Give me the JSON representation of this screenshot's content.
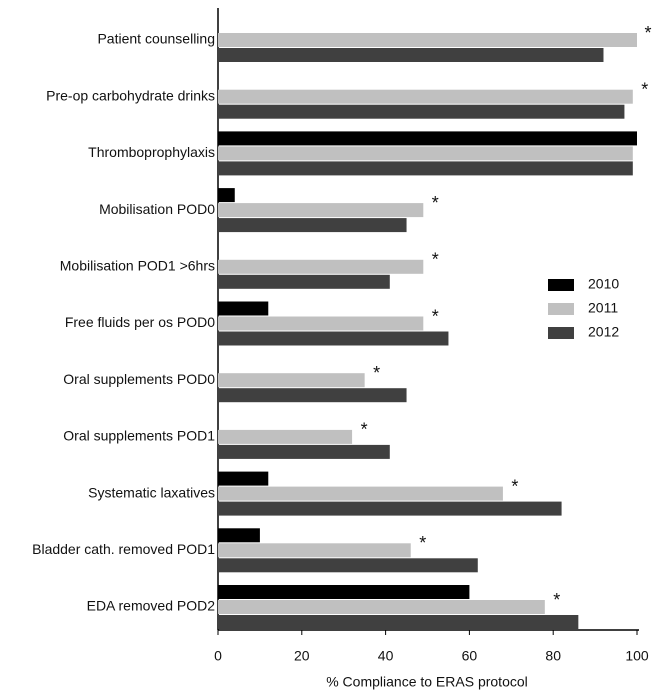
{
  "chart_data": {
    "type": "hbar",
    "xlabel": "%  Compliance to ERAS protocol",
    "categories": [
      "Patient counselling",
      "Pre-op carbohydrate drinks",
      "Thromboprophylaxis",
      "Mobilisation POD0",
      "Mobilisation POD1 >6hrs",
      "Free fluids per os POD0",
      "Oral supplements POD0",
      "Oral supplements POD1",
      "Systematic laxatives",
      "Bladder cath. removed POD1",
      "EDA removed POD2"
    ],
    "series": [
      {
        "name": "2010",
        "color": "#000000",
        "values": [
          null,
          null,
          100,
          4,
          null,
          12,
          null,
          null,
          12,
          10,
          60
        ]
      },
      {
        "name": "2011",
        "color": "#c0c0c0",
        "values": [
          100,
          99,
          99,
          49,
          49,
          49,
          35,
          32,
          68,
          46,
          78
        ]
      },
      {
        "name": "2012",
        "color": "#404040",
        "values": [
          92,
          97,
          99,
          45,
          41,
          55,
          45,
          41,
          82,
          62,
          86
        ]
      }
    ],
    "annotations": [
      "*",
      "*",
      null,
      "*",
      "*",
      "*",
      "*",
      "*",
      "*",
      "*",
      "*"
    ],
    "xlim": [
      0,
      100
    ],
    "xticks": [
      0,
      20,
      40,
      60,
      80,
      100
    ],
    "legend": "right"
  }
}
